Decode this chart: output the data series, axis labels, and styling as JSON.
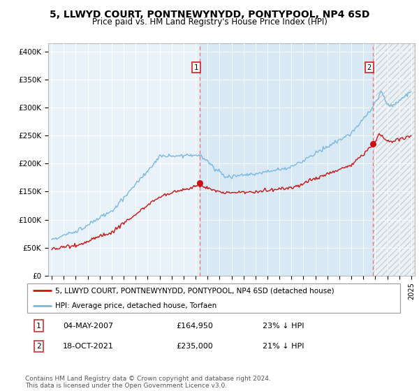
{
  "title": "5, LLWYD COURT, PONTNEWYNYDD, PONTYPOOL, NP4 6SD",
  "subtitle": "Price paid vs. HM Land Registry's House Price Index (HPI)",
  "title_fontsize": 10,
  "subtitle_fontsize": 8.5,
  "ylabel_ticks": [
    "£0",
    "£50K",
    "£100K",
    "£150K",
    "£200K",
    "£250K",
    "£300K",
    "£350K",
    "£400K"
  ],
  "ylabel_values": [
    0,
    50000,
    100000,
    150000,
    200000,
    250000,
    300000,
    350000,
    400000
  ],
  "ylim": [
    0,
    415000
  ],
  "xlim_start": 1994.7,
  "xlim_end": 2025.3,
  "hpi_color": "#7ab8e0",
  "price_color": "#cc1111",
  "marker1_date": 2007.35,
  "marker1_price": 164950,
  "marker2_date": 2021.8,
  "marker2_price": 235000,
  "legend_line1": "5, LLWYD COURT, PONTNEWYNYDD, PONTYPOOL, NP4 6SD (detached house)",
  "legend_line2": "HPI: Average price, detached house, Torfaen",
  "table_row1": [
    "1",
    "04-MAY-2007",
    "£164,950",
    "23% ↓ HPI"
  ],
  "table_row2": [
    "2",
    "18-OCT-2021",
    "£235,000",
    "21% ↓ HPI"
  ],
  "footnote": "Contains HM Land Registry data © Crown copyright and database right 2024.\nThis data is licensed under the Open Government Licence v3.0.",
  "background_color": "#ffffff",
  "plot_bg_color": "#e8f2f8",
  "grid_color": "#ffffff",
  "shade_color": "#ddeeff",
  "last_year": 2022.0
}
